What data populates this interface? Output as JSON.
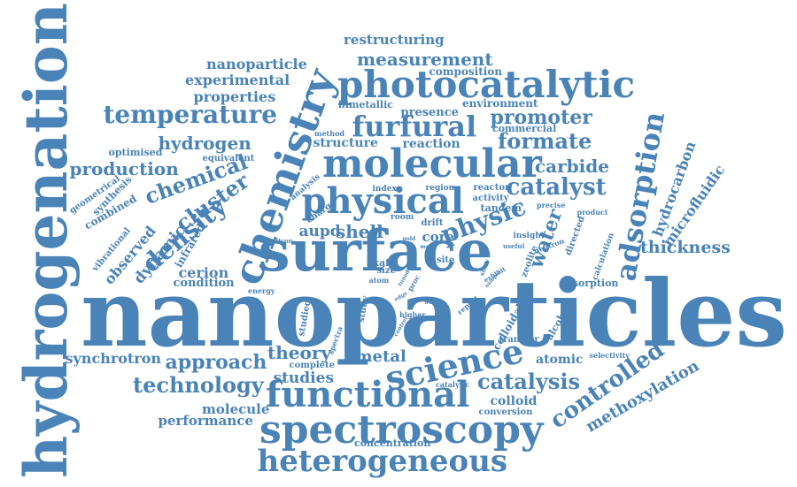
{
  "color": "#4a83b7",
  "words": [
    "nanoparticles",
    "surface",
    "hydrogenation",
    "spectroscopy",
    "heterogeneous",
    "functional",
    "molecular",
    "photocatalytic",
    "chemistry",
    "physical",
    "adsorption",
    "science",
    "furfural",
    "temperature",
    "technology",
    "catalysis",
    "controlled",
    "methoxylation",
    "density",
    "chemical",
    "cluster",
    "approach",
    "catalyst",
    "formate",
    "promoter",
    "measurement",
    "restructuring",
    "physic",
    "hydrocarbon",
    "microfluidic",
    "thickness",
    "production",
    "hydrogen",
    "theory",
    "studies",
    "metal",
    "water",
    "shell",
    "aupd",
    "core",
    "carbide",
    "dynamic",
    "observed",
    "cerion",
    "synchrotron",
    "condition",
    "infrared",
    "combined",
    "vibrational",
    "geometrical",
    "synthesis",
    "optimised",
    "equivalent",
    "properties",
    "experimental",
    "nanoparticle",
    "structure",
    "reaction",
    "presence",
    "bimetallic",
    "environment",
    "commercial",
    "composition",
    "method",
    "analysis",
    "charge",
    "index",
    "region",
    "reactor",
    "activity",
    "tandem",
    "precise",
    "product",
    "room",
    "drift",
    "directed",
    "insight",
    "useful",
    "neutron",
    "calculation",
    "absorption",
    "zeolite",
    "xafs",
    "size",
    "atom",
    "energy",
    "silicon",
    "study",
    "show",
    "exhibit",
    "higher",
    "proc",
    "step",
    "report",
    "colloidal",
    "alcohol",
    "transfer",
    "atomic",
    "selectivity",
    "complete",
    "catalytic",
    "spectra",
    "studied",
    "colloid",
    "conversion",
    "concentration",
    "molecule",
    "performance",
    "site",
    "edge",
    "sample",
    "tuned",
    "gold",
    "more",
    "control"
  ]
}
